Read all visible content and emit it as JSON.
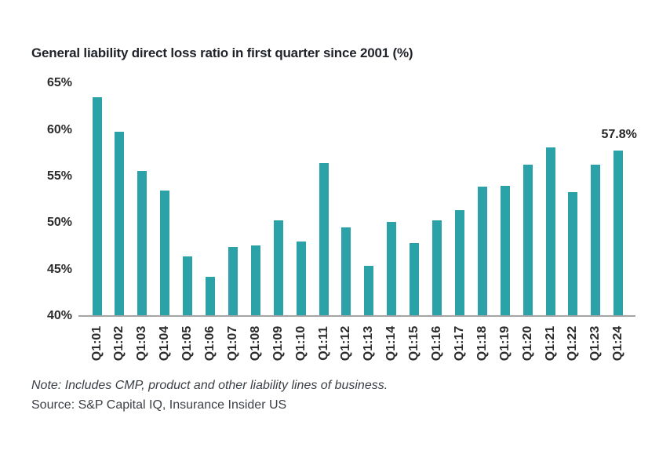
{
  "title": "General liability direct loss ratio in first quarter since 2001 (%)",
  "note": "Note: Includes CMP, product and other liability lines of business.",
  "source": "Source: S&P Capital IQ, Insurance Insider US",
  "annotation": {
    "text": "57.8%",
    "category": "Q1:24"
  },
  "colors": {
    "bar": "#2aa2a7",
    "axis_line": "#a4a4a4",
    "title_text": "#1f2329",
    "axis_label_text": "#2b2b2b",
    "note_text": "#3b4046"
  },
  "chart_data": {
    "type": "bar",
    "title": "General liability direct loss ratio in first quarter since 2001 (%)",
    "categories": [
      "Q1:01",
      "Q1:02",
      "Q1:03",
      "Q1:04",
      "Q1:05",
      "Q1:06",
      "Q1:07",
      "Q1:08",
      "Q1:09",
      "Q1:10",
      "Q1:11",
      "Q1:12",
      "Q1:13",
      "Q1:14",
      "Q1:15",
      "Q1:16",
      "Q1:17",
      "Q1:18",
      "Q1:19",
      "Q1:20",
      "Q1:21",
      "Q1:22",
      "Q1:23",
      "Q1:24"
    ],
    "values": [
      63.5,
      59.8,
      55.6,
      53.5,
      46.4,
      44.2,
      47.4,
      47.6,
      50.3,
      48.0,
      56.4,
      49.5,
      45.4,
      50.1,
      47.8,
      50.3,
      51.4,
      53.9,
      54.0,
      56.3,
      58.1,
      53.3,
      56.3,
      57.8
    ],
    "xlabel": "",
    "ylabel": "",
    "ylim": [
      40,
      65
    ],
    "yticks": [
      65,
      60,
      55,
      50,
      45,
      40
    ],
    "ytick_suffix": "%",
    "grid": false,
    "legend": null,
    "data_labels": {
      "Q1:24": "57.8%"
    }
  }
}
